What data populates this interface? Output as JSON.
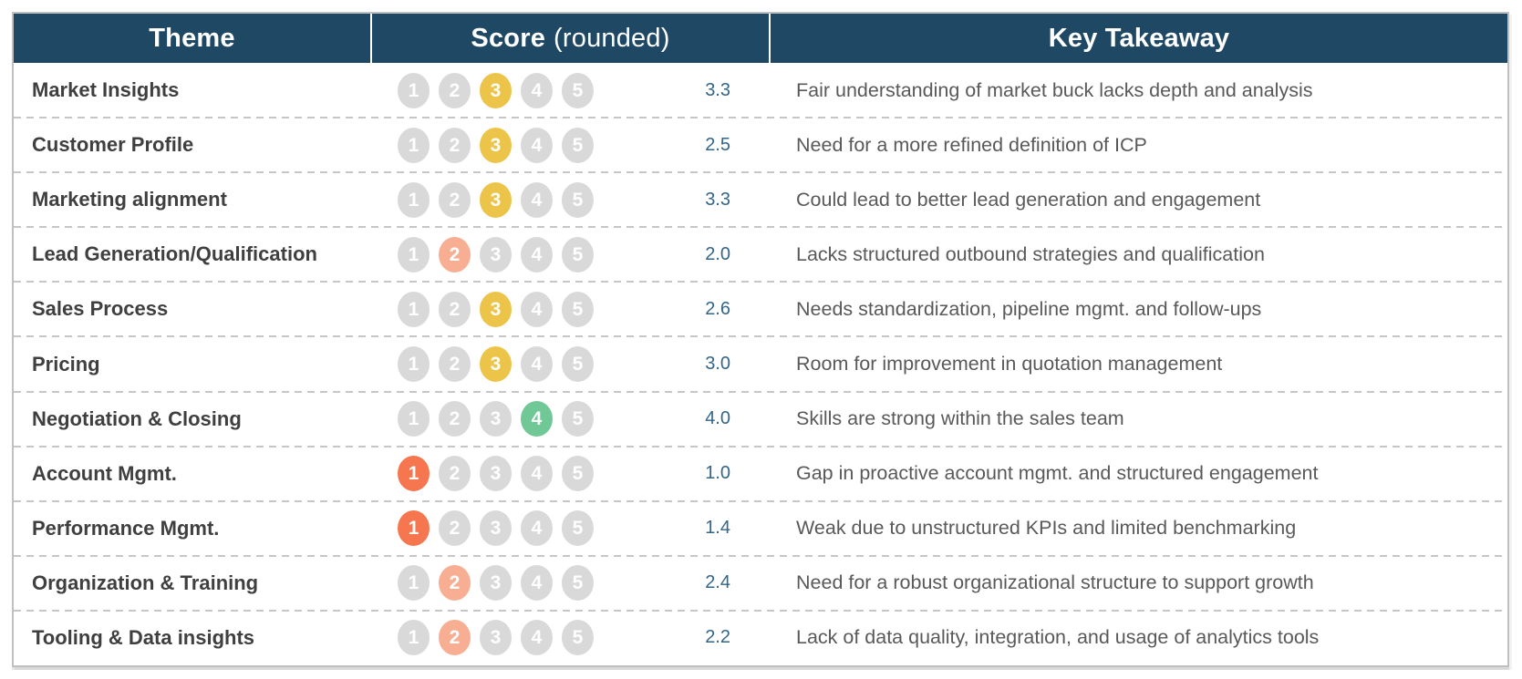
{
  "header": {
    "theme": "Theme",
    "score": "Score",
    "score_suffix": "(rounded)",
    "takeaway": "Key Takeaway"
  },
  "colors": {
    "header_bg": "#1F4864",
    "header_text": "#FFFFFF",
    "pill_default": "#D9D9D9",
    "pill_1": "#F5764F",
    "pill_2": "#F8AE92",
    "pill_3": "#EDC44A",
    "pill_4": "#6FC896",
    "score_text": "#33658A",
    "theme_text": "#3F3F3F",
    "takeaway_text": "#595959"
  },
  "chart_data": {
    "type": "table",
    "columns": [
      "Theme",
      "Score (rounded)",
      "Key Takeaway"
    ],
    "scale": [
      1,
      2,
      3,
      4,
      5
    ],
    "rows": [
      {
        "theme": "Market Insights",
        "rounded": 3,
        "score": "3.3",
        "takeaway": "Fair understanding of market buck lacks depth and analysis"
      },
      {
        "theme": "Customer Profile",
        "rounded": 3,
        "score": "2.5",
        "takeaway": "Need for a more refined definition of ICP"
      },
      {
        "theme": "Marketing alignment",
        "rounded": 3,
        "score": "3.3",
        "takeaway": "Could lead to better lead generation and engagement"
      },
      {
        "theme": "Lead Generation/Qualification",
        "rounded": 2,
        "score": "2.0",
        "takeaway": "Lacks structured outbound strategies and qualification"
      },
      {
        "theme": "Sales Process",
        "rounded": 3,
        "score": "2.6",
        "takeaway": "Needs standardization, pipeline mgmt. and follow-ups"
      },
      {
        "theme": "Pricing",
        "rounded": 3,
        "score": "3.0",
        "takeaway": "Room for improvement in quotation management"
      },
      {
        "theme": "Negotiation & Closing",
        "rounded": 4,
        "score": "4.0",
        "takeaway": "Skills are strong within the sales team"
      },
      {
        "theme": "Account Mgmt.",
        "rounded": 1,
        "score": "1.0",
        "takeaway": "Gap in proactive account mgmt. and structured engagement"
      },
      {
        "theme": "Performance Mgmt.",
        "rounded": 1,
        "score": "1.4",
        "takeaway": "Weak due to unstructured KPIs and limited benchmarking"
      },
      {
        "theme": "Organization & Training",
        "rounded": 2,
        "score": "2.4",
        "takeaway": "Need for a robust organizational structure to support growth"
      },
      {
        "theme": "Tooling & Data insights",
        "rounded": 2,
        "score": "2.2",
        "takeaway": "Lack of data quality, integration, and usage of analytics tools"
      }
    ]
  }
}
